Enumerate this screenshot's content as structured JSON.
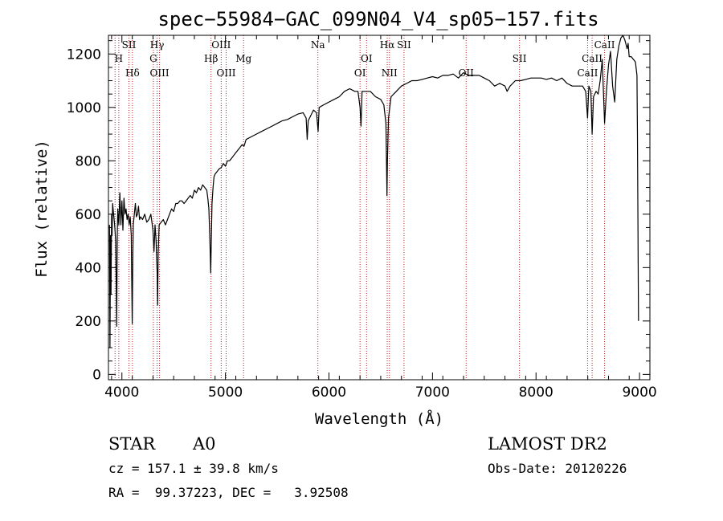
{
  "chart_data": {
    "type": "line",
    "title": "spec−55984−GAC_099N04_V4_sp05−157.fits",
    "xlabel": "Wavelength (Å)",
    "ylabel": "Flux (relative)",
    "xlim": [
      3870,
      9100
    ],
    "ylim": [
      -20,
      1270
    ],
    "x_ticks": [
      4000,
      5000,
      6000,
      7000,
      8000,
      9000
    ],
    "y_ticks": [
      0,
      200,
      400,
      600,
      800,
      1000,
      1200
    ],
    "grid": false,
    "colors": {
      "spectrum": "#000000",
      "line_markers": "#b22222"
    },
    "series": [
      {
        "values": [
          [
            3880,
            560
          ],
          [
            3885,
            100
          ],
          [
            3890,
            520
          ],
          [
            3895,
            300
          ],
          [
            3900,
            600
          ],
          [
            3905,
            520
          ],
          [
            3910,
            640
          ],
          [
            3920,
            600
          ],
          [
            3930,
            560
          ],
          [
            3940,
            500
          ],
          [
            3950,
            180
          ],
          [
            3955,
            520
          ],
          [
            3960,
            620
          ],
          [
            3970,
            560
          ],
          [
            3980,
            680
          ],
          [
            3990,
            560
          ],
          [
            4000,
            650
          ],
          [
            4010,
            540
          ],
          [
            4020,
            660
          ],
          [
            4030,
            600
          ],
          [
            4040,
            620
          ],
          [
            4050,
            580
          ],
          [
            4060,
            600
          ],
          [
            4070,
            560
          ],
          [
            4080,
            590
          ],
          [
            4090,
            520
          ],
          [
            4095,
            350
          ],
          [
            4100,
            190
          ],
          [
            4105,
            430
          ],
          [
            4110,
            560
          ],
          [
            4120,
            600
          ],
          [
            4130,
            640
          ],
          [
            4140,
            590
          ],
          [
            4150,
            600
          ],
          [
            4160,
            630
          ],
          [
            4170,
            580
          ],
          [
            4180,
            590
          ],
          [
            4200,
            580
          ],
          [
            4220,
            600
          ],
          [
            4240,
            570
          ],
          [
            4260,
            580
          ],
          [
            4280,
            600
          ],
          [
            4300,
            540
          ],
          [
            4310,
            460
          ],
          [
            4320,
            560
          ],
          [
            4330,
            500
          ],
          [
            4340,
            380
          ],
          [
            4345,
            260
          ],
          [
            4350,
            450
          ],
          [
            4360,
            560
          ],
          [
            4380,
            570
          ],
          [
            4400,
            580
          ],
          [
            4420,
            560
          ],
          [
            4440,
            580
          ],
          [
            4460,
            600
          ],
          [
            4480,
            620
          ],
          [
            4500,
            610
          ],
          [
            4520,
            640
          ],
          [
            4540,
            640
          ],
          [
            4560,
            650
          ],
          [
            4580,
            650
          ],
          [
            4600,
            640
          ],
          [
            4620,
            650
          ],
          [
            4640,
            660
          ],
          [
            4660,
            670
          ],
          [
            4680,
            660
          ],
          [
            4700,
            690
          ],
          [
            4720,
            680
          ],
          [
            4740,
            700
          ],
          [
            4760,
            690
          ],
          [
            4780,
            710
          ],
          [
            4800,
            700
          ],
          [
            4820,
            690
          ],
          [
            4830,
            660
          ],
          [
            4840,
            620
          ],
          [
            4850,
            500
          ],
          [
            4858,
            380
          ],
          [
            4863,
            500
          ],
          [
            4870,
            640
          ],
          [
            4880,
            700
          ],
          [
            4890,
            740
          ],
          [
            4900,
            750
          ],
          [
            4920,
            760
          ],
          [
            4940,
            770
          ],
          [
            4960,
            775
          ],
          [
            4980,
            790
          ],
          [
            5000,
            780
          ],
          [
            5020,
            800
          ],
          [
            5040,
            800
          ],
          [
            5060,
            810
          ],
          [
            5080,
            820
          ],
          [
            5100,
            830
          ],
          [
            5120,
            840
          ],
          [
            5140,
            850
          ],
          [
            5160,
            860
          ],
          [
            5180,
            855
          ],
          [
            5200,
            880
          ],
          [
            5250,
            890
          ],
          [
            5300,
            900
          ],
          [
            5350,
            910
          ],
          [
            5400,
            920
          ],
          [
            5450,
            930
          ],
          [
            5500,
            940
          ],
          [
            5550,
            950
          ],
          [
            5600,
            955
          ],
          [
            5650,
            965
          ],
          [
            5700,
            975
          ],
          [
            5750,
            980
          ],
          [
            5780,
            960
          ],
          [
            5790,
            880
          ],
          [
            5800,
            950
          ],
          [
            5850,
            990
          ],
          [
            5880,
            980
          ],
          [
            5895,
            910
          ],
          [
            5905,
            1000
          ],
          [
            5950,
            1010
          ],
          [
            6000,
            1020
          ],
          [
            6050,
            1030
          ],
          [
            6100,
            1040
          ],
          [
            6150,
            1060
          ],
          [
            6200,
            1070
          ],
          [
            6250,
            1060
          ],
          [
            6280,
            1060
          ],
          [
            6300,
            1000
          ],
          [
            6310,
            930
          ],
          [
            6320,
            1060
          ],
          [
            6350,
            1060
          ],
          [
            6400,
            1060
          ],
          [
            6450,
            1040
          ],
          [
            6500,
            1030
          ],
          [
            6530,
            1010
          ],
          [
            6550,
            940
          ],
          [
            6555,
            820
          ],
          [
            6560,
            670
          ],
          [
            6565,
            800
          ],
          [
            6575,
            960
          ],
          [
            6600,
            1040
          ],
          [
            6650,
            1060
          ],
          [
            6700,
            1080
          ],
          [
            6750,
            1090
          ],
          [
            6800,
            1100
          ],
          [
            6850,
            1100
          ],
          [
            6900,
            1105
          ],
          [
            6950,
            1110
          ],
          [
            7000,
            1115
          ],
          [
            7050,
            1110
          ],
          [
            7100,
            1120
          ],
          [
            7150,
            1120
          ],
          [
            7200,
            1125
          ],
          [
            7250,
            1110
          ],
          [
            7300,
            1130
          ],
          [
            7350,
            1120
          ],
          [
            7400,
            1120
          ],
          [
            7450,
            1120
          ],
          [
            7500,
            1110
          ],
          [
            7550,
            1100
          ],
          [
            7600,
            1080
          ],
          [
            7650,
            1090
          ],
          [
            7700,
            1080
          ],
          [
            7720,
            1060
          ],
          [
            7750,
            1080
          ],
          [
            7800,
            1100
          ],
          [
            7850,
            1100
          ],
          [
            7900,
            1105
          ],
          [
            7950,
            1110
          ],
          [
            8000,
            1110
          ],
          [
            8050,
            1110
          ],
          [
            8100,
            1105
          ],
          [
            8150,
            1110
          ],
          [
            8200,
            1100
          ],
          [
            8250,
            1110
          ],
          [
            8300,
            1090
          ],
          [
            8350,
            1080
          ],
          [
            8400,
            1080
          ],
          [
            8450,
            1080
          ],
          [
            8480,
            1060
          ],
          [
            8498,
            960
          ],
          [
            8510,
            1080
          ],
          [
            8530,
            1060
          ],
          [
            8542,
            900
          ],
          [
            8555,
            1040
          ],
          [
            8580,
            1060
          ],
          [
            8600,
            1050
          ],
          [
            8620,
            1100
          ],
          [
            8640,
            1180
          ],
          [
            8662,
            940
          ],
          [
            8680,
            1060
          ],
          [
            8700,
            1160
          ],
          [
            8720,
            1210
          ],
          [
            8740,
            1080
          ],
          [
            8760,
            1020
          ],
          [
            8780,
            1180
          ],
          [
            8800,
            1230
          ],
          [
            8820,
            1260
          ],
          [
            8840,
            1270
          ],
          [
            8860,
            1250
          ],
          [
            8880,
            1220
          ],
          [
            8890,
            1240
          ],
          [
            8900,
            1190
          ],
          [
            8920,
            1190
          ],
          [
            8940,
            1180
          ],
          [
            8960,
            1170
          ],
          [
            8975,
            1120
          ],
          [
            8980,
            900
          ],
          [
            8990,
            200
          ]
        ]
      }
    ],
    "line_markers": [
      {
        "label": "H",
        "wavelength": 3970,
        "row": 2
      },
      {
        "label": "SII",
        "wavelength": 4068,
        "row": 1
      },
      {
        "label": "Hδ",
        "wavelength": 4102,
        "row": 3
      },
      {
        "label": "Hγ",
        "wavelength": 4340,
        "row": 1
      },
      {
        "label": "G",
        "wavelength": 4304,
        "row": 2
      },
      {
        "label": "OIII",
        "wavelength": 4363,
        "row": 3
      },
      {
        "label": "Hβ",
        "wavelength": 4861,
        "row": 2
      },
      {
        "label": "OIII",
        "wavelength": 4959,
        "row": 1
      },
      {
        "label": "OIII",
        "wavelength": 5007,
        "row": 3
      },
      {
        "label": "Mg",
        "wavelength": 5175,
        "row": 2
      },
      {
        "label": "Na",
        "wavelength": 5893,
        "row": 1
      },
      {
        "label": "OI",
        "wavelength": 6300,
        "row": 3
      },
      {
        "label": "OI",
        "wavelength": 6363,
        "row": 2
      },
      {
        "label": "NII",
        "wavelength": 6584,
        "row": 3
      },
      {
        "label": "Hα",
        "wavelength": 6563,
        "row": 1
      },
      {
        "label": "SII",
        "wavelength": 6725,
        "row": 1
      },
      {
        "label": "OII",
        "wavelength": 7325,
        "row": 3
      },
      {
        "label": "SII",
        "wavelength": 7840,
        "row": 2
      },
      {
        "label": "CaII",
        "wavelength": 8498,
        "row": 3
      },
      {
        "label": "CaII",
        "wavelength": 8542,
        "row": 2
      },
      {
        "label": "CaII",
        "wavelength": 8662,
        "row": 1
      }
    ],
    "marker_wavelengths": [
      3934,
      3970,
      4068,
      4102,
      4304,
      4340,
      4363,
      4861,
      4959,
      5007,
      5175,
      5893,
      6300,
      6363,
      6563,
      6584,
      6725,
      7325,
      7840,
      8498,
      8542,
      8662
    ]
  },
  "info": {
    "object_class": "STAR",
    "subclass": "A0",
    "survey": "LAMOST DR2",
    "redshift": "cz = 157.1 ± 39.8 km/s",
    "obs_date": "Obs-Date: 20120226",
    "coordinates": "RA =  99.37223, DEC =   3.92508"
  }
}
